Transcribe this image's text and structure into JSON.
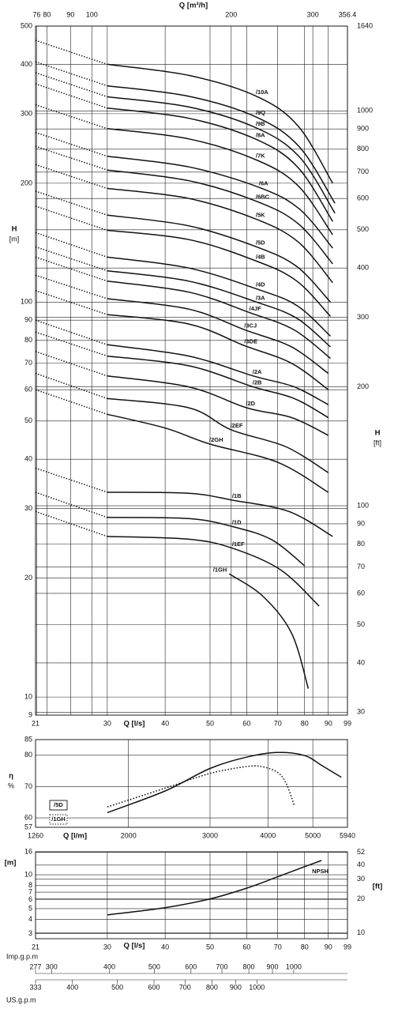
{
  "chart_data": [
    {
      "type": "line",
      "log_x": true,
      "log_y": true,
      "grid": true,
      "color": "#111111",
      "xlabel": "Q [l/s]",
      "x2label": "Q [m³/h]",
      "ylabel": "H",
      "yunit": "[m]",
      "y2label": "H",
      "y2unit": "[ft]",
      "xlim": [
        21,
        99
      ],
      "xticks": [
        21,
        30,
        40,
        50,
        60,
        70,
        80,
        90,
        99
      ],
      "x2lim": [
        75.6,
        356.4
      ],
      "x2ticks": [
        76,
        80,
        90,
        100,
        200,
        300,
        356.4
      ],
      "ylim": [
        9,
        500
      ],
      "yticks": [
        500,
        400,
        300,
        200,
        100,
        90,
        80,
        70,
        60,
        50,
        40,
        30,
        20,
        10,
        9
      ],
      "y2lim": [
        29.5,
        1640
      ],
      "y2ticks": [
        1640,
        1000,
        900,
        800,
        700,
        600,
        500,
        400,
        300,
        200,
        100,
        90,
        80,
        70,
        60,
        50,
        40,
        30
      ],
      "series": [
        {
          "name": "/10A",
          "x": [
            30,
            45,
            63,
            77.5,
            92
          ],
          "values": [
            400,
            375,
            332,
            279,
            200
          ],
          "dotted_x": [
            21
          ],
          "dotted_values": [
            460
          ]
        },
        {
          "name": "/9Q",
          "x": [
            30,
            45,
            63,
            78,
            93
          ],
          "values": [
            353,
            332,
            294,
            247,
            178
          ],
          "dotted_x": [
            21
          ],
          "dotted_values": [
            406
          ]
        },
        {
          "name": "/9B",
          "x": [
            30,
            45,
            63,
            78,
            93
          ],
          "values": [
            331,
            312,
            276,
            233,
            168
          ],
          "dotted_x": [
            21
          ],
          "dotted_values": [
            381
          ]
        },
        {
          "name": "/8A",
          "x": [
            30,
            45,
            63,
            77.5,
            92
          ],
          "values": [
            310,
            292,
            258,
            219,
            160
          ],
          "dotted_x": [
            21
          ],
          "dotted_values": [
            357
          ]
        },
        {
          "name": "/7K",
          "x": [
            30,
            45,
            63,
            77.5,
            92
          ],
          "values": [
            275,
            259,
            229,
            197,
            148
          ],
          "dotted_x": [
            21
          ],
          "dotted_values": [
            316
          ]
        },
        {
          "name": "/6A",
          "x": [
            30,
            45,
            64,
            78,
            92
          ],
          "values": [
            234,
            220,
            195,
            172,
            137
          ],
          "dotted_x": [
            21
          ],
          "dotted_values": [
            269
          ]
        },
        {
          "name": "/6BC",
          "x": [
            30,
            45,
            63,
            77.5,
            92
          ],
          "values": [
            216,
            203,
            180,
            158,
            125
          ],
          "dotted_x": [
            21
          ],
          "dotted_values": [
            248
          ]
        },
        {
          "name": "/5K",
          "x": [
            30,
            45,
            63,
            77.5,
            92
          ],
          "values": [
            194,
            183,
            162,
            142,
            112
          ],
          "dotted_x": [
            21
          ],
          "dotted_values": [
            223
          ]
        },
        {
          "name": "/5D",
          "x": [
            30,
            45,
            63,
            77,
            91
          ],
          "values": [
            166,
            156,
            138,
            123,
            100
          ],
          "dotted_x": [
            21
          ],
          "dotted_values": [
            191
          ]
        },
        {
          "name": "/4B",
          "x": [
            30,
            45,
            63,
            77,
            91
          ],
          "values": [
            152,
            144,
            127,
            113,
            92
          ],
          "dotted_x": [
            21
          ],
          "dotted_values": [
            175
          ]
        },
        {
          "name": "/4D",
          "x": [
            30,
            45,
            63,
            77,
            91
          ],
          "values": [
            130,
            122,
            108,
            98,
            82
          ],
          "dotted_x": [
            21
          ],
          "dotted_values": [
            150
          ]
        },
        {
          "name": "/3A",
          "x": [
            30,
            45,
            63,
            77,
            91
          ],
          "values": [
            120,
            113,
            100,
            91,
            77
          ],
          "dotted_x": [
            21
          ],
          "dotted_values": [
            138
          ]
        },
        {
          "name": "/4JF",
          "x": [
            30,
            45,
            61,
            76,
            91
          ],
          "values": [
            113,
            106,
            94,
            85,
            72
          ],
          "dotted_x": [
            21
          ],
          "dotted_values": [
            130
          ]
        },
        {
          "name": "/3CJ",
          "x": [
            30,
            45,
            59.5,
            75,
            90
          ],
          "values": [
            102,
            96,
            85,
            77,
            66
          ],
          "dotted_x": [
            21
          ],
          "dotted_values": [
            117
          ]
        },
        {
          "name": "/3DE",
          "x": [
            30,
            45,
            59.5,
            75,
            90
          ],
          "values": [
            93,
            88,
            77.5,
            70,
            60
          ],
          "dotted_x": [
            21
          ],
          "dotted_values": [
            107
          ]
        },
        {
          "name": "/2A",
          "x": [
            30,
            45,
            62,
            76,
            90
          ],
          "values": [
            78,
            73,
            65,
            61,
            55
          ],
          "dotted_x": [
            21
          ],
          "dotted_values": [
            90
          ]
        },
        {
          "name": "/2B",
          "x": [
            30,
            45,
            62,
            76,
            90
          ],
          "values": [
            73,
            69,
            61,
            57,
            51
          ],
          "dotted_x": [
            21
          ],
          "dotted_values": [
            84
          ]
        },
        {
          "name": "/2D",
          "x": [
            30,
            45,
            60,
            75,
            90
          ],
          "values": [
            65,
            61,
            54,
            51,
            46
          ],
          "dotted_x": [
            21
          ],
          "dotted_values": [
            75
          ]
        },
        {
          "name": "/2EF",
          "x": [
            30,
            45,
            55.5,
            73,
            90
          ],
          "values": [
            57,
            54,
            47.5,
            43,
            37
          ],
          "dotted_x": [
            21
          ],
          "dotted_values": [
            66
          ]
        },
        {
          "name": "/2GH",
          "x": [
            30,
            40,
            50,
            70,
            90
          ],
          "values": [
            52,
            48,
            43.7,
            39.3,
            33
          ],
          "dotted_x": [
            21
          ],
          "dotted_values": [
            60
          ]
        },
        {
          "name": "/1B",
          "x": [
            30,
            45,
            56,
            74,
            92
          ],
          "values": [
            33,
            32.8,
            31.5,
            29.5,
            25.5
          ],
          "dotted_x": [
            21
          ],
          "dotted_values": [
            38
          ]
        },
        {
          "name": "/1D",
          "x": [
            30,
            45,
            56,
            68,
            80
          ],
          "values": [
            28.5,
            28.3,
            27,
            25,
            21.5
          ],
          "dotted_x": [
            21
          ],
          "dotted_values": [
            33
          ]
        },
        {
          "name": "/1EF",
          "x": [
            30,
            45,
            56,
            71,
            86
          ],
          "values": [
            25.5,
            25.1,
            23.8,
            21,
            17
          ],
          "dotted_x": [
            21
          ],
          "dotted_values": [
            29.5
          ]
        },
        {
          "name": "/1GH",
          "x": [
            55,
            65,
            75,
            81.5
          ],
          "values": [
            20.5,
            18,
            14.5,
            10.5
          ]
        }
      ]
    },
    {
      "type": "line",
      "log_x": true,
      "log_y": false,
      "grid": true,
      "color": "#111111",
      "legend": "lower left",
      "xlabel": "Q [l/m]",
      "ylabel": "η",
      "yunit": "%",
      "xlim": [
        1260,
        5940
      ],
      "xticks": [
        1260,
        2000,
        3000,
        4000,
        5000,
        5940
      ],
      "ylim": [
        57,
        85
      ],
      "yticks": [
        85,
        80,
        70,
        60,
        57
      ],
      "series": [
        {
          "name": "/5D",
          "line_style": "solid",
          "x": [
            1800,
            2400,
            3000,
            3600,
            4200,
            4800,
            5220,
            5760
          ],
          "values": [
            61.7,
            68.6,
            75.8,
            79.4,
            80.9,
            79.9,
            76.8,
            73
          ]
        },
        {
          "name": "/1GH",
          "line_style": "dotted",
          "x": [
            1800,
            2400,
            3000,
            3600,
            3900,
            4200,
            4380,
            4560
          ],
          "values": [
            63.5,
            69.5,
            74.2,
            76.4,
            76.3,
            74.5,
            71,
            64
          ]
        }
      ]
    },
    {
      "type": "line",
      "log_x": true,
      "log_y": true,
      "grid": true,
      "color": "#111111",
      "xlabel": "Q [l/s]",
      "ylabel": "[m]",
      "y2label": "[ft]",
      "xlim": [
        21,
        99
      ],
      "xticks": [
        21,
        30,
        40,
        50,
        60,
        70,
        80,
        90,
        99
      ],
      "ylim": [
        2.7,
        16
      ],
      "yticks": [
        16,
        10,
        8,
        7,
        6,
        5,
        4,
        3
      ],
      "y2lim": [
        8.86,
        52.5
      ],
      "y2ticks": [
        52,
        40,
        30,
        20,
        10
      ],
      "x3label": "Imp.g.p.m",
      "x3lim": [
        277,
        1306.6
      ],
      "x3ticks": [
        277,
        300,
        400,
        500,
        600,
        700,
        800,
        900,
        1000
      ],
      "x4label": "US.g.p.m",
      "x4lim": [
        333,
        1569
      ],
      "x4ticks": [
        333,
        400,
        500,
        600,
        700,
        800,
        900,
        1000
      ],
      "series": [
        {
          "name": "NPSH",
          "x": [
            30,
            40,
            50,
            60,
            70,
            80,
            87
          ],
          "values": [
            4.4,
            5.1,
            6.1,
            7.6,
            9.6,
            11.8,
            13.4
          ]
        }
      ]
    }
  ]
}
